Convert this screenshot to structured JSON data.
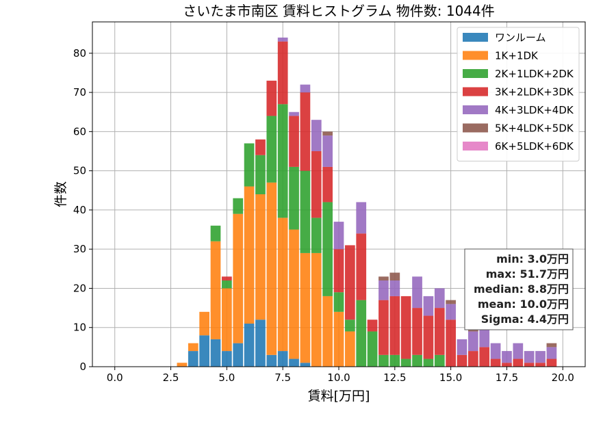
{
  "chart_data": {
    "type": "bar",
    "stacked": true,
    "title": "さいたま市南区 賃料ヒストグラム  物件数: 1044件",
    "xlabel": "賃料[万円]",
    "ylabel": "件数",
    "xlim": [
      -1.0,
      21.0
    ],
    "ylim": [
      0,
      88
    ],
    "xticks": [
      0.0,
      2.5,
      5.0,
      7.5,
      10.0,
      12.5,
      15.0,
      17.5,
      20.0
    ],
    "xtick_labels": [
      "0.0",
      "2.5",
      "5.0",
      "7.5",
      "10.0",
      "12.5",
      "15.0",
      "17.5",
      "20.0"
    ],
    "yticks": [
      0,
      10,
      20,
      30,
      40,
      50,
      60,
      70,
      80
    ],
    "ytick_labels": [
      "0",
      "10",
      "20",
      "30",
      "40",
      "50",
      "60",
      "70",
      "80"
    ],
    "grid": true,
    "legend_position": "top-right",
    "bin_width": 0.5,
    "bins_start": [
      2.75,
      3.25,
      3.75,
      4.25,
      4.75,
      5.25,
      5.75,
      6.25,
      6.75,
      7.25,
      7.75,
      8.25,
      8.75,
      9.25,
      9.75,
      10.25,
      10.75,
      11.25,
      11.75,
      12.25,
      12.75,
      13.25,
      13.75,
      14.25,
      14.75,
      15.25,
      15.75,
      16.25,
      16.75,
      17.25,
      17.75,
      18.25,
      18.75,
      19.25
    ],
    "series": [
      {
        "name": "ワンルーム",
        "color": "#1f77b4",
        "values": [
          0,
          4,
          8,
          7,
          4,
          6,
          11,
          12,
          3,
          4,
          2,
          1,
          0,
          0,
          0,
          0,
          0,
          0,
          0,
          0,
          0,
          0,
          0,
          0,
          0,
          0,
          0,
          0,
          0,
          0,
          0,
          0,
          0,
          0
        ]
      },
      {
        "name": "1K+1DK",
        "color": "#ff7f0e",
        "values": [
          1,
          2,
          6,
          25,
          16,
          33,
          35,
          32,
          44,
          34,
          33,
          28,
          29,
          18,
          14,
          9,
          0,
          0,
          0,
          0,
          0,
          0,
          0,
          0,
          0,
          0,
          0,
          0,
          0,
          0,
          0,
          0,
          0,
          0
        ]
      },
      {
        "name": "2K+1LDK+2DK",
        "color": "#2ca02c",
        "values": [
          0,
          0,
          0,
          4,
          2,
          4,
          11,
          10,
          17,
          29,
          16,
          21,
          9,
          24,
          5,
          3,
          17,
          9,
          3,
          3,
          2,
          3,
          2,
          3,
          0,
          0,
          0,
          0,
          0,
          0,
          0,
          0,
          0,
          0
        ]
      },
      {
        "name": "3K+2LDK+3DK",
        "color": "#d62728",
        "values": [
          0,
          0,
          0,
          0,
          1,
          0,
          0,
          4,
          9,
          16,
          13,
          20,
          17,
          9,
          11,
          19,
          17,
          3,
          14,
          15,
          16,
          12,
          11,
          12,
          12,
          3,
          4,
          5,
          2,
          1,
          2,
          1,
          1,
          2
        ]
      },
      {
        "name": "4K+3LDK+4DK",
        "color": "#9467bd",
        "values": [
          0,
          0,
          0,
          0,
          0,
          0,
          0,
          0,
          0,
          1,
          1,
          2,
          8,
          8,
          7,
          0,
          8,
          0,
          5,
          4,
          0,
          8,
          5,
          5,
          4,
          4,
          5,
          5,
          4,
          3,
          4,
          3,
          3,
          3
        ]
      },
      {
        "name": "5K+4LDK+5DK",
        "color": "#8c564b",
        "values": [
          0,
          0,
          0,
          0,
          0,
          0,
          0,
          0,
          0,
          0,
          0,
          0,
          0,
          1,
          0,
          0,
          0,
          0,
          1,
          2,
          0,
          0,
          0,
          0,
          1,
          0,
          1,
          0,
          0,
          0,
          0,
          0,
          0,
          1
        ]
      },
      {
        "name": "6K+5LDK+6DK",
        "color": "#e377c2",
        "values": [
          0,
          0,
          0,
          0,
          0,
          0,
          0,
          0,
          0,
          0,
          0,
          0,
          0,
          0,
          0,
          0,
          0,
          0,
          0,
          0,
          0,
          0,
          0,
          0,
          0,
          0,
          0,
          0,
          0,
          0,
          0,
          0,
          0,
          0
        ]
      }
    ],
    "annotations": [
      "min: 3.0万円",
      "max: 51.7万円",
      "median: 8.8万円",
      "mean: 10.0万円",
      "Sigma: 4.4万円"
    ]
  }
}
